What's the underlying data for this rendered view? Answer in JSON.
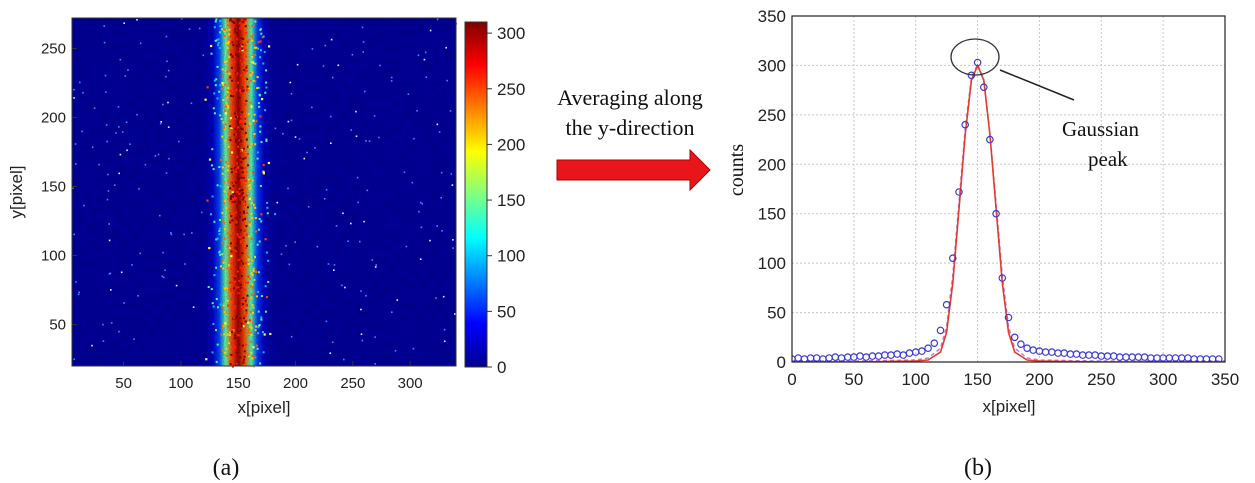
{
  "panel_a": {
    "caption": "(a)",
    "xlabel": "x[pixel]",
    "ylabel": "y[pixel]"
  },
  "arrow": {
    "line1": "Averaging along",
    "line2": "the y-direction",
    "color": "#e8161b"
  },
  "panel_b": {
    "caption": "(b)",
    "xlabel": "x[pixel]",
    "ylabel": "counts",
    "annotation_line1": "Gaussian",
    "annotation_line2": "peak"
  },
  "chart_data": [
    {
      "type": "heatmap",
      "title": "",
      "xlabel": "x[pixel]",
      "ylabel": "y[pixel]",
      "xlim": [
        5,
        340
      ],
      "ylim": [
        20,
        272
      ],
      "xticks": [
        50,
        100,
        150,
        200,
        250,
        300
      ],
      "yticks": [
        50,
        100,
        150,
        200,
        250
      ],
      "colorbar": {
        "min": 0,
        "max": 310,
        "ticks": [
          0,
          50,
          100,
          150,
          200,
          250,
          300
        ],
        "colormap": "jet"
      },
      "band": {
        "center_x": 150,
        "profile": "gaussian",
        "peak_value": 300,
        "background_value": 5
      },
      "background_color": "#00008f"
    },
    {
      "type": "line",
      "title": "",
      "xlabel": "x[pixel]",
      "ylabel": "counts",
      "xlim": [
        0,
        350
      ],
      "ylim": [
        0,
        350
      ],
      "xticks": [
        0,
        50,
        100,
        150,
        200,
        250,
        300,
        350
      ],
      "yticks": [
        0,
        50,
        100,
        150,
        200,
        250,
        300,
        350
      ],
      "grid": true,
      "series": [
        {
          "style": "markers",
          "marker": "circle",
          "color": "#3a3ad8",
          "x": [
            0,
            5,
            10,
            15,
            20,
            25,
            30,
            35,
            40,
            45,
            50,
            55,
            60,
            65,
            70,
            75,
            80,
            85,
            90,
            95,
            100,
            105,
            110,
            115,
            120,
            125,
            130,
            135,
            140,
            145,
            150,
            155,
            160,
            165,
            170,
            175,
            180,
            185,
            190,
            195,
            200,
            205,
            210,
            215,
            220,
            225,
            230,
            235,
            240,
            245,
            250,
            255,
            260,
            265,
            270,
            275,
            280,
            285,
            290,
            295,
            300,
            305,
            310,
            315,
            320,
            325,
            330,
            335,
            340,
            345
          ],
          "y": [
            3,
            4,
            3,
            4,
            4,
            3,
            4,
            5,
            4,
            5,
            5,
            6,
            5,
            6,
            6,
            7,
            7,
            8,
            7,
            9,
            10,
            11,
            14,
            19,
            32,
            58,
            105,
            172,
            240,
            290,
            303,
            278,
            225,
            150,
            85,
            45,
            25,
            18,
            14,
            12,
            11,
            10,
            10,
            9,
            9,
            8,
            8,
            7,
            7,
            7,
            6,
            6,
            6,
            5,
            5,
            5,
            5,
            5,
            4,
            4,
            4,
            4,
            4,
            4,
            4,
            3,
            3,
            3,
            3,
            3
          ]
        },
        {
          "style": "line",
          "color": "#e33b2e",
          "x": [
            0,
            50,
            100,
            110,
            120,
            125,
            130,
            135,
            140,
            145,
            150,
            155,
            160,
            165,
            170,
            175,
            180,
            190,
            200,
            250,
            300,
            350
          ],
          "y": [
            0,
            0,
            1,
            2,
            10,
            30,
            80,
            155,
            230,
            285,
            300,
            285,
            230,
            155,
            80,
            30,
            10,
            2,
            1,
            0,
            0,
            0
          ]
        },
        {
          "style": "dashed",
          "color": "#b47ad0",
          "x": [
            0,
            50,
            100,
            110,
            120,
            125,
            130,
            135,
            140,
            145,
            150,
            155,
            160,
            165,
            170,
            175,
            180,
            190,
            200,
            250,
            300,
            350
          ],
          "y": [
            1,
            1,
            2,
            4,
            14,
            36,
            88,
            162,
            236,
            288,
            301,
            286,
            232,
            160,
            88,
            36,
            14,
            4,
            2,
            1,
            1,
            1
          ]
        }
      ]
    }
  ]
}
